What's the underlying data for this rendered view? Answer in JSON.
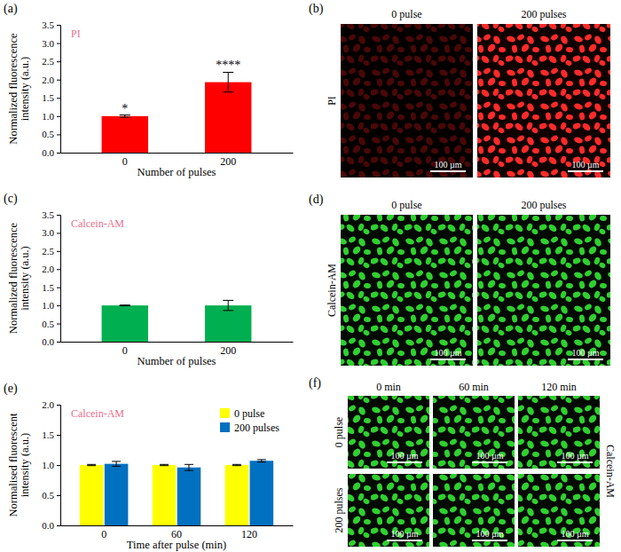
{
  "chart_data": [
    {
      "type": "bar",
      "panel_label": "(a)",
      "annotation": "PI",
      "categories": [
        "0",
        "200"
      ],
      "values": [
        1.0,
        1.93
      ],
      "errors": [
        0.03,
        0.27
      ],
      "significance": [
        "*",
        "****"
      ],
      "color": "#ff0000",
      "x_label": "Number of pulses",
      "y_label": "Normalized fluorescence intensity (a.u.)",
      "ylim": [
        0,
        3.5
      ],
      "yticks": [
        {
          "value": 0,
          "label": "0.0"
        },
        0.5,
        {
          "value": 1,
          "label": "1.0"
        },
        1.5,
        {
          "value": 2,
          "label": "2.0"
        },
        2.5,
        {
          "value": 3,
          "label": "3.0"
        },
        3.5
      ]
    },
    {
      "type": "bar",
      "panel_label": "(c)",
      "annotation": "Calcein-AM",
      "categories": [
        "0",
        "200"
      ],
      "values": [
        1.0,
        1.0
      ],
      "errors": [
        0.01,
        0.14
      ],
      "color": "#00b050",
      "x_label": "Number of pulses",
      "y_label": "Normalized fluorescence intensity (a.u.)",
      "ylim": [
        0,
        3.5
      ],
      "yticks": [
        {
          "value": 0,
          "label": "0.0"
        },
        0.5,
        {
          "value": 1,
          "label": "1.0"
        },
        1.5,
        {
          "value": 2,
          "label": "2.0"
        },
        2.5,
        {
          "value": 3,
          "label": "3.0"
        },
        3.5
      ]
    },
    {
      "type": "bar",
      "panel_label": "(e)",
      "annotation": "Calcein-AM",
      "categories": [
        "0",
        "60",
        "120"
      ],
      "series": [
        {
          "name": "0 pulse",
          "color": "#ffff00",
          "values": [
            1.0,
            1.0,
            1.0
          ],
          "errors": [
            0.01,
            0.01,
            0.01
          ]
        },
        {
          "name": "200 pulses",
          "color": "#0070c0",
          "values": [
            1.02,
            0.96,
            1.07
          ],
          "errors": [
            0.04,
            0.05,
            0.02
          ]
        }
      ],
      "legend": "top-right",
      "x_label": "Time after pulse (min)",
      "y_label": "Normalised fluorescent intensity (a.u.)",
      "ylim": [
        0,
        2
      ],
      "yticks": [
        {
          "value": 0,
          "label": "0.0"
        },
        0.5,
        {
          "value": 1,
          "label": "1.0"
        },
        1.5,
        {
          "value": 2,
          "label": "2.0"
        }
      ]
    }
  ],
  "image_panels": [
    {
      "panel_label": "(b)",
      "row_labels": [
        "PI"
      ],
      "column_labels": [
        "0 pulse",
        "200 pulses"
      ],
      "scale_bar": "100 µm"
    },
    {
      "panel_label": "(d)",
      "row_labels": [
        "Calcein-AM"
      ],
      "column_labels": [
        "0 pulse",
        "200 pulses"
      ],
      "scale_bar": "100 µm"
    },
    {
      "panel_label": "(f)",
      "row_labels": [
        "0 pulse",
        "200 pulses"
      ],
      "column_labels": [
        "0 min",
        "60 min",
        "120 min"
      ],
      "side_label": "Calcein-AM",
      "scale_bar": "100 µm"
    }
  ]
}
